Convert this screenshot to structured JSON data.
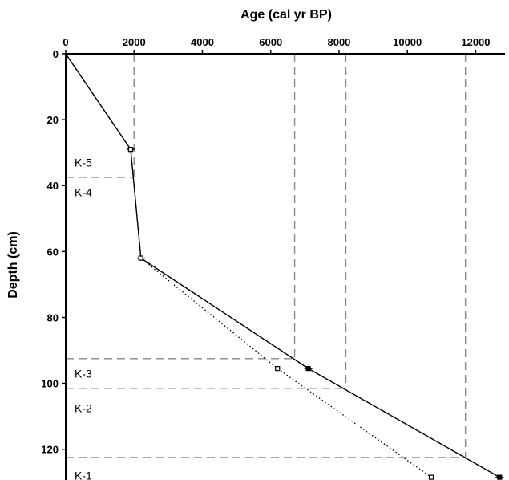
{
  "chart_data": {
    "type": "line",
    "title": "",
    "xlabel": "Age (cal yr BP)",
    "ylabel": "Depth (cm)",
    "xlim": [
      0,
      12800
    ],
    "ylim": [
      0,
      130
    ],
    "x_axis_position": "top",
    "y_inverted": true,
    "x_ticks": [
      0,
      2000,
      4000,
      6000,
      8000,
      10000,
      12000
    ],
    "y_ticks": [
      0,
      20,
      40,
      60,
      80,
      100,
      120
    ],
    "grid": false,
    "series": [
      {
        "style": "solid",
        "marker": "filled-square-with-errorbar",
        "points": [
          {
            "age": 0,
            "depth": 0
          },
          {
            "age": 1900,
            "depth": 29
          },
          {
            "age": 2200,
            "depth": 62
          },
          {
            "age": 7100,
            "depth": 95.5
          },
          {
            "age": 12700,
            "depth": 128.5
          }
        ]
      },
      {
        "style": "dotted",
        "marker": "open-square",
        "points": [
          {
            "age": 0,
            "depth": 0
          },
          {
            "age": 1900,
            "depth": 29
          },
          {
            "age": 2200,
            "depth": 62
          },
          {
            "age": 6200,
            "depth": 95.5
          },
          {
            "age": 10700,
            "depth": 128.5
          }
        ]
      }
    ],
    "zone_boundaries": [
      {
        "depth": 37.5,
        "age_end": 2000
      },
      {
        "depth": 92.5,
        "age_end": 6700
      },
      {
        "depth": 101.5,
        "age_end": 8200
      },
      {
        "depth": 122.5,
        "age_end": 11700
      }
    ],
    "age_markers": [
      {
        "age": 2000,
        "depth_end": 37.5
      },
      {
        "age": 6700,
        "depth_end": 92.5
      },
      {
        "age": 8200,
        "depth_end": 101.5
      },
      {
        "age": 11700,
        "depth_end": 122.5
      }
    ],
    "zones": [
      {
        "label": "K-5",
        "depth": 33
      },
      {
        "label": "K-4",
        "depth": 42
      },
      {
        "label": "K-3",
        "depth": 97
      },
      {
        "label": "K-2",
        "depth": 107.5
      },
      {
        "label": "K-1",
        "depth": 128
      }
    ]
  }
}
